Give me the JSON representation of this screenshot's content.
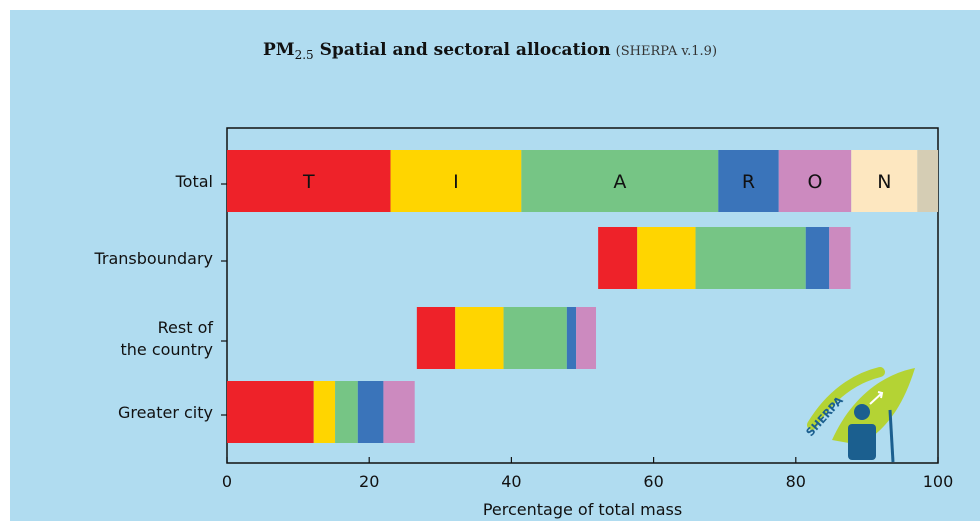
{
  "title": {
    "main": "PM",
    "subscript": "2.5",
    "rest": " Spatial and sectoral allocation",
    "version": "(SHERPA v.1.9)"
  },
  "logo": {
    "text": "SHERPA"
  },
  "chart_data": {
    "type": "bar",
    "orientation": "horizontal",
    "stacked": true,
    "xlabel": "Percentage of total mass",
    "xlim": [
      0,
      100
    ],
    "xticks": [
      0,
      20,
      40,
      60,
      80,
      100
    ],
    "grid": false,
    "categories": [
      "Total",
      "Transboundary",
      "Rest of the country",
      "Greater city"
    ],
    "category_lines": [
      [
        "Total"
      ],
      [
        "Transboundary"
      ],
      [
        "Rest of",
        "the country"
      ],
      [
        "Greater city"
      ]
    ],
    "segment_labels": [
      "T",
      "I",
      "A",
      "R",
      "O",
      "N",
      ""
    ],
    "colors": [
      "#ee2229",
      "#ffd500",
      "#76c585",
      "#3a74ba",
      "#cc8abf",
      "#fde7c0",
      "#d5cdb4"
    ],
    "series": [
      {
        "values": [
          23.0,
          5.5,
          5.4,
          12.2
        ]
      },
      {
        "values": [
          18.4,
          8.2,
          6.8,
          3.0
        ]
      },
      {
        "values": [
          27.7,
          15.5,
          8.9,
          3.2
        ]
      },
      {
        "values": [
          8.5,
          3.3,
          1.3,
          3.6
        ]
      },
      {
        "values": [
          10.2,
          3.0,
          2.8,
          4.4
        ]
      },
      {
        "values": [
          9.3,
          0,
          0,
          0
        ]
      },
      {
        "values": [
          2.9,
          0,
          0,
          0
        ]
      }
    ],
    "offsets": [
      0,
      52.2,
      26.7,
      0
    ]
  }
}
